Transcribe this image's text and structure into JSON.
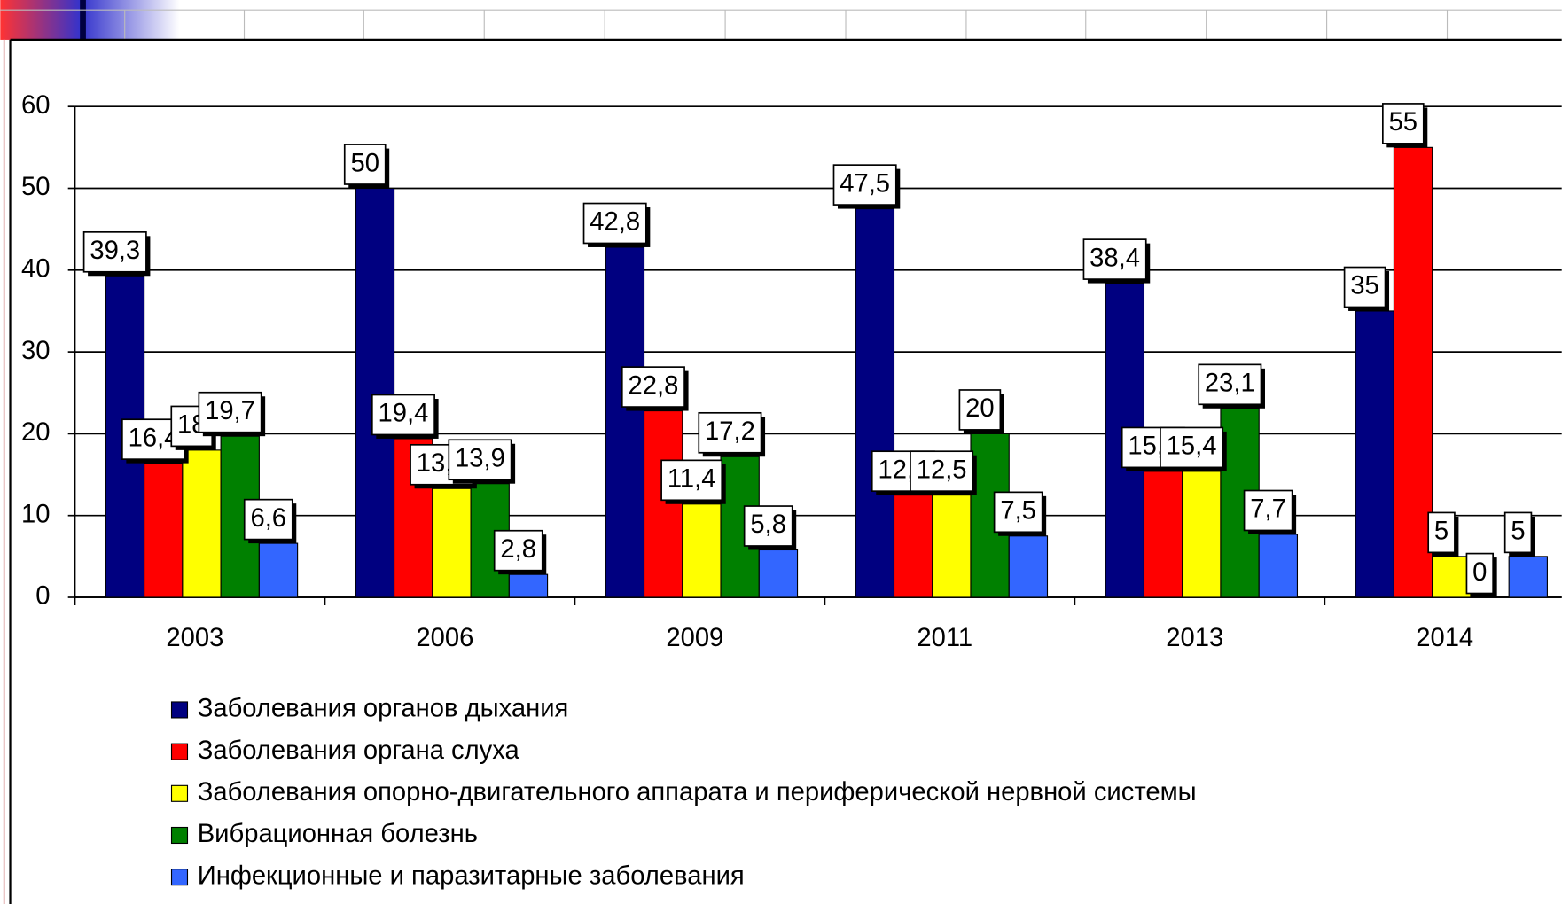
{
  "chart_data": {
    "type": "bar",
    "categories": [
      "2003",
      "2006",
      "2009",
      "2011",
      "2013",
      "2014"
    ],
    "series": [
      {
        "name": "Заболевания органов дыхания",
        "color": "#000080",
        "values": [
          39.3,
          50,
          42.8,
          47.5,
          38.4,
          35
        ],
        "value_labels": [
          "39,3",
          "50",
          "42,8",
          "47,5",
          "38,4",
          "35"
        ]
      },
      {
        "name": "Заболевания органа слуха",
        "color": "#ff0000",
        "values": [
          16.4,
          19.4,
          22.8,
          12.5,
          15.4,
          55
        ],
        "value_labels": [
          "16,4",
          "19,4",
          "22,8",
          "12,5",
          "15,4",
          "55"
        ]
      },
      {
        "name": "Заболевания опорно-двигательного аппарата и периферической нервной системы",
        "color": "#ffff00",
        "values": [
          18,
          13.3,
          11.4,
          12.5,
          15.4,
          5
        ],
        "value_labels": [
          "18",
          "13,3",
          "11,4",
          "12,5",
          "15,4",
          "5"
        ]
      },
      {
        "name": "Вибрационная болезнь",
        "color": "#008000",
        "values": [
          19.7,
          13.9,
          17.2,
          20,
          23.1,
          0
        ],
        "value_labels": [
          "19,7",
          "13,9",
          "17,2",
          "20",
          "23,1",
          "0"
        ]
      },
      {
        "name": "Инфекционные и паразитарные заболевания",
        "color": "#3366ff",
        "values": [
          6.6,
          2.8,
          5.8,
          7.5,
          7.7,
          5
        ],
        "value_labels": [
          "6,6",
          "2,8",
          "5,8",
          "7,5",
          "7,7",
          "5"
        ]
      }
    ],
    "ylim": [
      0,
      60
    ],
    "yticks": [
      0,
      10,
      20,
      30,
      40,
      50,
      60
    ],
    "grid": true,
    "legend": "bottom"
  }
}
